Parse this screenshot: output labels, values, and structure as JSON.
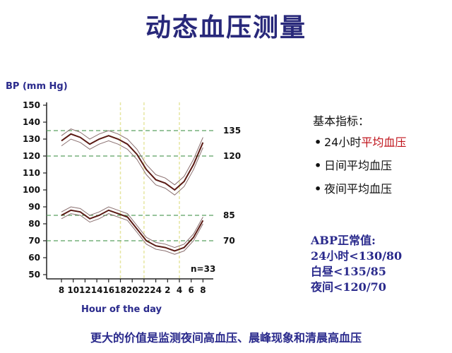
{
  "title": "动态血压测量",
  "info": {
    "basic_title": "基本指标：",
    "bullets": [
      {
        "prefix": "24小时",
        "highlight": "平均血压"
      },
      {
        "prefix": "日间平均血压",
        "highlight": ""
      },
      {
        "prefix": "夜间平均血压",
        "highlight": ""
      }
    ],
    "bullet_symbol": "•"
  },
  "abp": {
    "title": "ABP正常值:",
    "lines": [
      "24小时<130/80",
      "白昼<135/85",
      "夜间<120/70"
    ]
  },
  "bottom_note": "更大的价值是监测夜间高血压、晨峰现象和清晨高血压",
  "chart_data": {
    "type": "line",
    "ylabel": "BP (mm Hg)",
    "xlabel": "Hour of the day",
    "x_ticks": [
      "8",
      "10",
      "12",
      "14",
      "16",
      "18",
      "20",
      "22",
      "24",
      "2",
      "4",
      "6",
      "8"
    ],
    "y_ticks": [
      50,
      60,
      70,
      80,
      90,
      100,
      110,
      120,
      130,
      140,
      150
    ],
    "ylim": [
      50,
      150
    ],
    "annotation": "n=33",
    "reference_lines": [
      {
        "value": 135,
        "label": "135"
      },
      {
        "value": 120,
        "label": "120"
      },
      {
        "value": 85,
        "label": "85"
      },
      {
        "value": 70,
        "label": "70"
      }
    ],
    "vertical_markers_hours": [
      18,
      22,
      4
    ],
    "series": [
      {
        "role": "systolic-mean",
        "values": [
          129,
          133,
          131,
          127,
          130,
          132,
          130,
          127,
          121,
          112,
          106,
          104,
          100,
          105,
          115,
          128
        ]
      },
      {
        "role": "systolic-upper",
        "values": [
          132,
          136,
          134,
          130,
          133,
          135,
          133,
          130,
          124,
          115,
          109,
          107,
          103,
          108,
          118,
          131
        ]
      },
      {
        "role": "systolic-lower",
        "values": [
          126,
          130,
          128,
          124,
          127,
          129,
          127,
          124,
          118,
          109,
          103,
          101,
          97,
          102,
          112,
          125
        ]
      },
      {
        "role": "diastolic-mean",
        "values": [
          85,
          88,
          87,
          83,
          85,
          88,
          86,
          84,
          77,
          70,
          67,
          66,
          64,
          66,
          72,
          82
        ]
      },
      {
        "role": "diastolic-upper",
        "values": [
          87,
          90,
          89,
          85,
          87,
          90,
          88,
          86,
          79,
          72,
          69,
          68,
          66,
          68,
          74,
          84
        ]
      },
      {
        "role": "diastolic-lower",
        "values": [
          83,
          86,
          85,
          81,
          83,
          86,
          84,
          82,
          75,
          68,
          65,
          64,
          62,
          64,
          70,
          80
        ]
      }
    ],
    "x_hours": [
      8,
      9,
      10,
      11,
      12,
      13,
      14,
      15,
      16,
      17,
      18,
      19,
      20,
      21,
      22,
      23
    ],
    "colors": {
      "mean": "#5a1a14",
      "band": "#8a7070",
      "ref": "#5aa060",
      "marker": "#e6e6a0"
    }
  }
}
